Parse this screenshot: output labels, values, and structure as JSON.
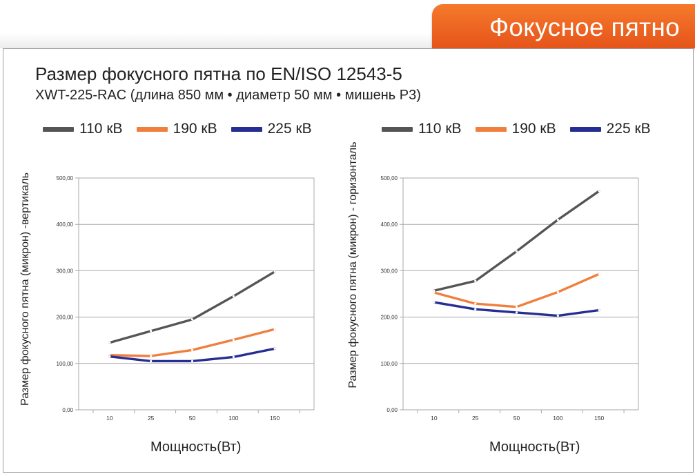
{
  "banner": {
    "title": "Фокусное пятно"
  },
  "header": {
    "title": "Размер фокусного пятна по EN/ISO 12543-5",
    "subtitle": "XWT-225-RAC (длина 850 мм • диаметр 50 мм • мишень Р3)"
  },
  "colors": {
    "110": "#555555",
    "190": "#f07f3e",
    "225": "#262e92",
    "grid": "#a9a9a9"
  },
  "chart_data": [
    {
      "type": "line",
      "ylabel": "Размер фокусного пятна (микрон) -вертикаль",
      "xlabel": "Мощность(Вт)",
      "categories": [
        "10",
        "25",
        "50",
        "100",
        "150"
      ],
      "y_ticks": [
        "0,00",
        "100,00",
        "200,00",
        "300,00",
        "400,00",
        "500,00"
      ],
      "ylim": [
        0,
        500
      ],
      "grid": true,
      "legend": [
        "110 кВ",
        "190 кВ",
        "225 кВ"
      ],
      "series": [
        {
          "name": "110 кВ",
          "color": "#555555",
          "values": [
            145,
            170,
            195,
            245,
            298
          ]
        },
        {
          "name": "190 кВ",
          "color": "#f07f3e",
          "values": [
            118,
            116,
            129,
            151,
            174
          ]
        },
        {
          "name": "225 кВ",
          "color": "#262e92",
          "values": [
            115,
            105,
            105,
            114,
            132
          ]
        }
      ]
    },
    {
      "type": "line",
      "ylabel": "Размер фокусного пятна (микрон) - горизонталь",
      "xlabel": "Мощность(Вт)",
      "categories": [
        "10",
        "25",
        "50",
        "100",
        "150"
      ],
      "y_ticks": [
        "0,00",
        "100,00",
        "200,00",
        "300,00",
        "400,00",
        "500,00"
      ],
      "ylim": [
        0,
        500
      ],
      "grid": true,
      "legend": [
        "110 кВ",
        "190 кВ",
        "225 кВ"
      ],
      "series": [
        {
          "name": "110 кВ",
          "color": "#555555",
          "values": [
            257,
            278,
            342,
            410,
            472
          ]
        },
        {
          "name": "190 кВ",
          "color": "#f07f3e",
          "values": [
            253,
            229,
            222,
            254,
            293
          ]
        },
        {
          "name": "225 кВ",
          "color": "#262e92",
          "values": [
            232,
            217,
            210,
            203,
            215
          ]
        }
      ]
    }
  ]
}
